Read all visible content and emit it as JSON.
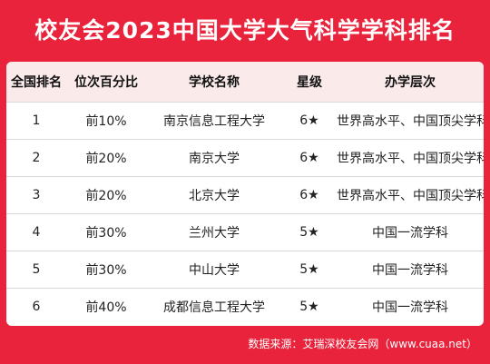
{
  "title": "校友会2023中国大学大气科学学科排名",
  "headers": [
    "全国排名",
    "位次百分比",
    "学校名称",
    "星级",
    "办学层次"
  ],
  "rows": [
    {
      "rank": "1",
      "percent": "前10%",
      "school": "南京信息工程大学",
      "stars": "6★",
      "level": "世界高水平、中国顶尖学科"
    },
    {
      "rank": "2",
      "percent": "前20%",
      "school": "南京大学",
      "stars": "6★",
      "level": "世界高水平、中国顶尖学科"
    },
    {
      "rank": "3",
      "percent": "前20%",
      "school": "北京大学",
      "stars": "6★",
      "level": "世界高水平、中国顶尖学科"
    },
    {
      "rank": "4",
      "percent": "前30%",
      "school": "兰州大学",
      "stars": "5★",
      "level": "中国一流学科"
    },
    {
      "rank": "5",
      "percent": "前30%",
      "school": "中山大学",
      "stars": "5★",
      "level": "中国一流学科"
    },
    {
      "rank": "6",
      "percent": "前40%",
      "school": "成都信息工程大学",
      "stars": "5★",
      "level": "中国一流学科"
    }
  ],
  "footer": "数据来源：艾瑞深校友会网（www.cuaa.net）",
  "colors": {
    "background": "#e8233b",
    "header_row": "#fbeaea",
    "text": "#222222"
  }
}
